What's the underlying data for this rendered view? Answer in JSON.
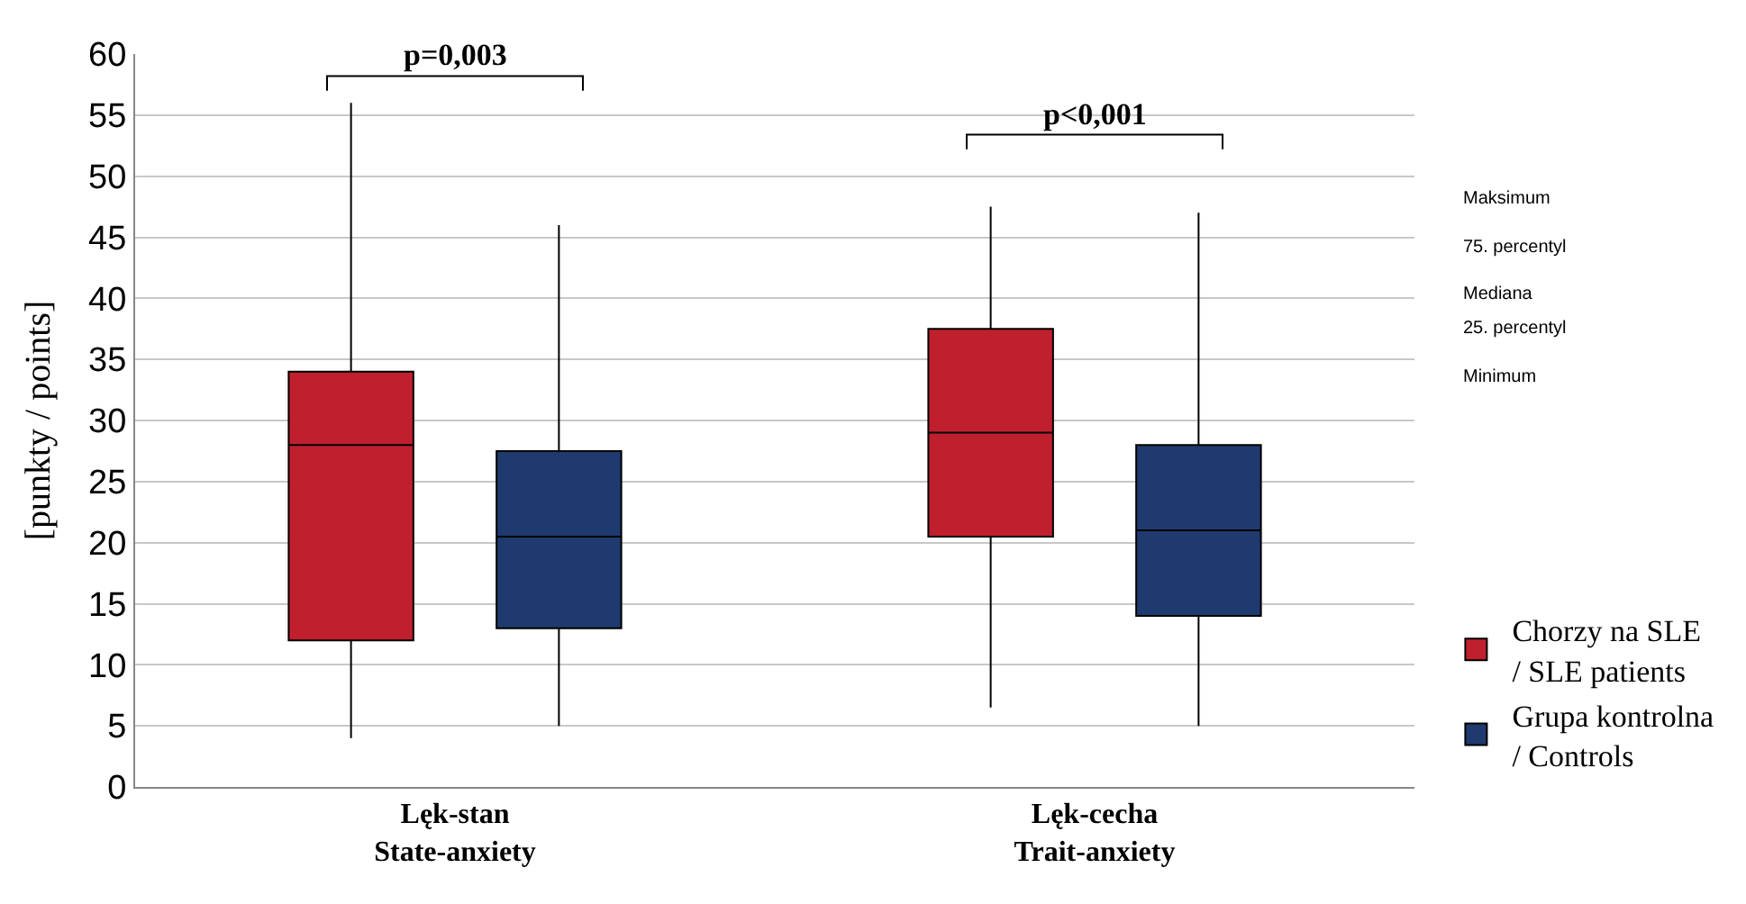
{
  "chart_data": {
    "type": "box",
    "ylabel": "[punkty / points]",
    "categories": [
      "Lęk-stan\nState-anxiety",
      "Lęk-cecha\nTrait-anxiety"
    ],
    "series": [
      {
        "name": "Chorzy na SLE\n/ SLE patients",
        "color": "#c0202e",
        "boxes": [
          {
            "low": 4,
            "q1": 12,
            "median": 28,
            "q3": 34,
            "high": 56
          },
          {
            "low": 6.5,
            "q1": 20.5,
            "median": 29,
            "q3": 37.5,
            "high": 47.5
          }
        ]
      },
      {
        "name": "Grupa kontrolna\n/ Controls",
        "color": "#1f3a6e",
        "boxes": [
          {
            "low": 5,
            "q1": 13,
            "median": 20.5,
            "q3": 27.5,
            "high": 46
          },
          {
            "low": 5,
            "q1": 14,
            "median": 21,
            "q3": 28,
            "high": 47
          }
        ]
      }
    ],
    "ylim": [
      0,
      60
    ],
    "yticks": [
      0,
      5,
      10,
      15,
      20,
      25,
      30,
      35,
      40,
      45,
      50,
      55,
      60
    ],
    "grid": "y",
    "legend": "bottom right",
    "annotations": [
      "p=0,003",
      "p<0,001",
      "Maksimum",
      "75. percentyl",
      "Mediana",
      "25. percentyl",
      "Minimum"
    ]
  }
}
